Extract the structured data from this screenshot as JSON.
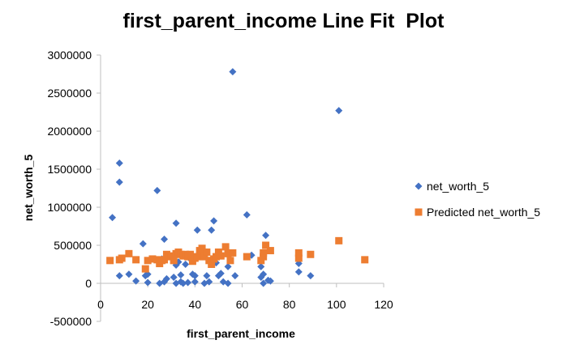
{
  "chart_data": {
    "type": "scatter",
    "title": "first_parent_income Line Fit  Plot",
    "xlabel": "first_parent_income",
    "ylabel": "net_worth_5",
    "xlim": [
      0,
      120
    ],
    "ylim": [
      -500000,
      3000000
    ],
    "x_ticks": [
      "0",
      "20",
      "40",
      "60",
      "80",
      "100",
      "120"
    ],
    "y_ticks": [
      "-500000",
      "0",
      "500000",
      "1000000",
      "1500000",
      "2000000",
      "2500000",
      "3000000"
    ],
    "legend_position": "right",
    "series": [
      {
        "name": "net_worth_5",
        "marker": "diamond",
        "color": "#4472C4",
        "points": [
          [
            5,
            865000
          ],
          [
            8,
            1580000
          ],
          [
            8,
            1330000
          ],
          [
            8,
            100000
          ],
          [
            12,
            120000
          ],
          [
            15,
            30000
          ],
          [
            18,
            520000
          ],
          [
            19,
            100000
          ],
          [
            20,
            10000
          ],
          [
            20,
            120000
          ],
          [
            24,
            1220000
          ],
          [
            25,
            0
          ],
          [
            26,
            320000
          ],
          [
            27,
            20000
          ],
          [
            27,
            580000
          ],
          [
            28,
            60000
          ],
          [
            31,
            80000
          ],
          [
            32,
            0
          ],
          [
            32,
            790000
          ],
          [
            32,
            240000
          ],
          [
            33,
            280000
          ],
          [
            34,
            20000
          ],
          [
            34,
            110000
          ],
          [
            35,
            0
          ],
          [
            36,
            250000
          ],
          [
            37,
            10000
          ],
          [
            38,
            320000
          ],
          [
            39,
            120000
          ],
          [
            40,
            100000
          ],
          [
            40,
            20000
          ],
          [
            41,
            700000
          ],
          [
            43,
            350000
          ],
          [
            44,
            0
          ],
          [
            45,
            100000
          ],
          [
            46,
            20000
          ],
          [
            47,
            700000
          ],
          [
            48,
            820000
          ],
          [
            49,
            270000
          ],
          [
            50,
            100000
          ],
          [
            51,
            130000
          ],
          [
            52,
            20000
          ],
          [
            54,
            220000
          ],
          [
            54,
            0
          ],
          [
            56,
            2780000
          ],
          [
            57,
            100000
          ],
          [
            62,
            900000
          ],
          [
            64,
            370000
          ],
          [
            68,
            220000
          ],
          [
            68,
            80000
          ],
          [
            69,
            0
          ],
          [
            69,
            120000
          ],
          [
            70,
            630000
          ],
          [
            71,
            40000
          ],
          [
            72,
            30000
          ],
          [
            84,
            260000
          ],
          [
            84,
            150000
          ],
          [
            89,
            100000
          ],
          [
            101,
            2270000
          ]
        ]
      },
      {
        "name": "Predicted net_worth_5",
        "marker": "square",
        "color": "#ED7D31",
        "points": [
          [
            4,
            300000
          ],
          [
            8,
            310000
          ],
          [
            9,
            330000
          ],
          [
            12,
            390000
          ],
          [
            15,
            310000
          ],
          [
            19,
            190000
          ],
          [
            20,
            300000
          ],
          [
            22,
            320000
          ],
          [
            24,
            310000
          ],
          [
            25,
            260000
          ],
          [
            26,
            300000
          ],
          [
            27,
            310000
          ],
          [
            28,
            380000
          ],
          [
            29,
            350000
          ],
          [
            30,
            360000
          ],
          [
            31,
            300000
          ],
          [
            32,
            390000
          ],
          [
            33,
            410000
          ],
          [
            34,
            380000
          ],
          [
            35,
            360000
          ],
          [
            36,
            380000
          ],
          [
            37,
            350000
          ],
          [
            38,
            380000
          ],
          [
            39,
            290000
          ],
          [
            40,
            330000
          ],
          [
            41,
            350000
          ],
          [
            42,
            430000
          ],
          [
            43,
            460000
          ],
          [
            44,
            350000
          ],
          [
            45,
            410000
          ],
          [
            46,
            300000
          ],
          [
            47,
            250000
          ],
          [
            48,
            320000
          ],
          [
            49,
            350000
          ],
          [
            50,
            410000
          ],
          [
            51,
            360000
          ],
          [
            53,
            480000
          ],
          [
            54,
            390000
          ],
          [
            55,
            300000
          ],
          [
            56,
            400000
          ],
          [
            62,
            350000
          ],
          [
            68,
            300000
          ],
          [
            69,
            400000
          ],
          [
            69,
            350000
          ],
          [
            70,
            500000
          ],
          [
            72,
            430000
          ],
          [
            84,
            400000
          ],
          [
            84,
            330000
          ],
          [
            89,
            380000
          ],
          [
            101,
            560000
          ],
          [
            112,
            310000
          ]
        ]
      }
    ]
  }
}
